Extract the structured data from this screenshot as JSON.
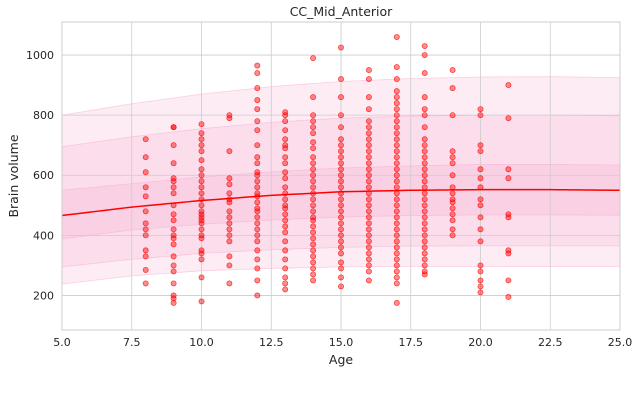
{
  "chart_data": {
    "type": "scatter",
    "title": "CC_Mid_Anterior",
    "xlabel": "Age",
    "ylabel": "Brain volume",
    "xlim": [
      5.0,
      25.0
    ],
    "ylim": [
      85,
      1110
    ],
    "xticks": [
      5.0,
      7.5,
      10.0,
      12.5,
      15.0,
      17.5,
      20.0,
      22.5,
      25.0
    ],
    "xtick_labels": [
      "5.0",
      "7.5",
      "10.0",
      "12.5",
      "15.0",
      "17.5",
      "20.0",
      "22.5",
      "25.0"
    ],
    "yticks": [
      200,
      400,
      600,
      800,
      1000
    ],
    "ytick_labels": [
      "200",
      "400",
      "600",
      "800",
      "1000"
    ],
    "grid": true,
    "colors": {
      "points": "#ff0000",
      "median_line": "#ff0000",
      "band": "#f7a8cf",
      "grid": "#cccccc",
      "frame": "#cccccc"
    },
    "median_curve": {
      "x": [
        5,
        7.5,
        10,
        12.5,
        15,
        17.5,
        20,
        22.5,
        25
      ],
      "y": [
        466,
        494,
        516,
        533,
        545,
        550,
        552,
        552,
        550
      ]
    },
    "bands": [
      {
        "lower": [
          238,
          265,
          282,
          290,
          295,
          297,
          297,
          296,
          296
        ],
        "upper": [
          800,
          838,
          870,
          895,
          912,
          922,
          927,
          928,
          925
        ]
      },
      {
        "lower": [
          295,
          320,
          340,
          352,
          360,
          364,
          365,
          365,
          365
        ],
        "upper": [
          695,
          728,
          755,
          776,
          790,
          797,
          800,
          800,
          798
        ]
      },
      {
        "lower": [
          388,
          418,
          437,
          451,
          461,
          466,
          468,
          468,
          467
        ],
        "upper": [
          550,
          572,
          594,
          611,
          624,
          631,
          636,
          636,
          634
        ]
      }
    ],
    "points": [
      [
        8,
        720
      ],
      [
        8,
        660
      ],
      [
        8,
        610
      ],
      [
        8,
        560
      ],
      [
        8,
        530
      ],
      [
        8,
        480
      ],
      [
        8,
        440
      ],
      [
        8,
        420
      ],
      [
        8,
        400
      ],
      [
        8,
        350
      ],
      [
        8,
        330
      ],
      [
        8,
        285
      ],
      [
        8,
        240
      ],
      [
        9,
        760
      ],
      [
        9,
        760
      ],
      [
        9,
        700
      ],
      [
        9,
        640
      ],
      [
        9,
        590
      ],
      [
        9,
        580
      ],
      [
        9,
        560
      ],
      [
        9,
        540
      ],
      [
        9,
        500
      ],
      [
        9,
        470
      ],
      [
        9,
        450
      ],
      [
        9,
        420
      ],
      [
        9,
        400
      ],
      [
        9,
        390
      ],
      [
        9,
        370
      ],
      [
        9,
        330
      ],
      [
        9,
        300
      ],
      [
        9,
        280
      ],
      [
        9,
        240
      ],
      [
        9,
        200
      ],
      [
        9,
        190
      ],
      [
        9,
        175
      ],
      [
        10,
        770
      ],
      [
        10,
        740
      ],
      [
        10,
        720
      ],
      [
        10,
        700
      ],
      [
        10,
        680
      ],
      [
        10,
        650
      ],
      [
        10,
        620
      ],
      [
        10,
        600
      ],
      [
        10,
        580
      ],
      [
        10,
        560
      ],
      [
        10,
        540
      ],
      [
        10,
        520
      ],
      [
        10,
        500
      ],
      [
        10,
        480
      ],
      [
        10,
        470
      ],
      [
        10,
        460
      ],
      [
        10,
        450
      ],
      [
        10,
        440
      ],
      [
        10,
        420
      ],
      [
        10,
        400
      ],
      [
        10,
        390
      ],
      [
        10,
        350
      ],
      [
        10,
        340
      ],
      [
        10,
        320
      ],
      [
        10,
        260
      ],
      [
        10,
        180
      ],
      [
        11,
        800
      ],
      [
        11,
        790
      ],
      [
        11,
        680
      ],
      [
        11,
        590
      ],
      [
        11,
        570
      ],
      [
        11,
        540
      ],
      [
        11,
        520
      ],
      [
        11,
        510
      ],
      [
        11,
        480
      ],
      [
        11,
        460
      ],
      [
        11,
        440
      ],
      [
        11,
        420
      ],
      [
        11,
        400
      ],
      [
        11,
        380
      ],
      [
        11,
        330
      ],
      [
        11,
        300
      ],
      [
        11,
        240
      ],
      [
        12,
        965
      ],
      [
        12,
        940
      ],
      [
        12,
        890
      ],
      [
        12,
        850
      ],
      [
        12,
        820
      ],
      [
        12,
        780
      ],
      [
        12,
        750
      ],
      [
        12,
        700
      ],
      [
        12,
        660
      ],
      [
        12,
        640
      ],
      [
        12,
        610
      ],
      [
        12,
        600
      ],
      [
        12,
        580
      ],
      [
        12,
        560
      ],
      [
        12,
        540
      ],
      [
        12,
        530
      ],
      [
        12,
        510
      ],
      [
        12,
        490
      ],
      [
        12,
        480
      ],
      [
        12,
        460
      ],
      [
        12,
        440
      ],
      [
        12,
        420
      ],
      [
        12,
        400
      ],
      [
        12,
        380
      ],
      [
        12,
        350
      ],
      [
        12,
        320
      ],
      [
        12,
        290
      ],
      [
        12,
        250
      ],
      [
        12,
        200
      ],
      [
        13,
        810
      ],
      [
        13,
        800
      ],
      [
        13,
        780
      ],
      [
        13,
        750
      ],
      [
        13,
        720
      ],
      [
        13,
        700
      ],
      [
        13,
        690
      ],
      [
        13,
        660
      ],
      [
        13,
        640
      ],
      [
        13,
        610
      ],
      [
        13,
        590
      ],
      [
        13,
        560
      ],
      [
        13,
        540
      ],
      [
        13,
        520
      ],
      [
        13,
        500
      ],
      [
        13,
        490
      ],
      [
        13,
        470
      ],
      [
        13,
        450
      ],
      [
        13,
        430
      ],
      [
        13,
        410
      ],
      [
        13,
        380
      ],
      [
        13,
        350
      ],
      [
        13,
        320
      ],
      [
        13,
        290
      ],
      [
        13,
        260
      ],
      [
        13,
        240
      ],
      [
        13,
        220
      ],
      [
        14,
        990
      ],
      [
        14,
        860
      ],
      [
        14,
        800
      ],
      [
        14,
        780
      ],
      [
        14,
        760
      ],
      [
        14,
        740
      ],
      [
        14,
        710
      ],
      [
        14,
        690
      ],
      [
        14,
        660
      ],
      [
        14,
        640
      ],
      [
        14,
        620
      ],
      [
        14,
        600
      ],
      [
        14,
        580
      ],
      [
        14,
        560
      ],
      [
        14,
        540
      ],
      [
        14,
        520
      ],
      [
        14,
        500
      ],
      [
        14,
        480
      ],
      [
        14,
        460
      ],
      [
        14,
        450
      ],
      [
        14,
        430
      ],
      [
        14,
        410
      ],
      [
        14,
        390
      ],
      [
        14,
        370
      ],
      [
        14,
        350
      ],
      [
        14,
        330
      ],
      [
        14,
        310
      ],
      [
        14,
        290
      ],
      [
        14,
        270
      ],
      [
        14,
        250
      ],
      [
        15,
        1025
      ],
      [
        15,
        920
      ],
      [
        15,
        860
      ],
      [
        15,
        800
      ],
      [
        15,
        760
      ],
      [
        15,
        720
      ],
      [
        15,
        700
      ],
      [
        15,
        680
      ],
      [
        15,
        660
      ],
      [
        15,
        640
      ],
      [
        15,
        620
      ],
      [
        15,
        600
      ],
      [
        15,
        580
      ],
      [
        15,
        560
      ],
      [
        15,
        540
      ],
      [
        15,
        520
      ],
      [
        15,
        500
      ],
      [
        15,
        480
      ],
      [
        15,
        460
      ],
      [
        15,
        440
      ],
      [
        15,
        420
      ],
      [
        15,
        400
      ],
      [
        15,
        380
      ],
      [
        15,
        360
      ],
      [
        15,
        340
      ],
      [
        15,
        310
      ],
      [
        15,
        290
      ],
      [
        15,
        260
      ],
      [
        15,
        230
      ],
      [
        16,
        950
      ],
      [
        16,
        920
      ],
      [
        16,
        860
      ],
      [
        16,
        820
      ],
      [
        16,
        780
      ],
      [
        16,
        760
      ],
      [
        16,
        740
      ],
      [
        16,
        720
      ],
      [
        16,
        700
      ],
      [
        16,
        680
      ],
      [
        16,
        660
      ],
      [
        16,
        640
      ],
      [
        16,
        620
      ],
      [
        16,
        600
      ],
      [
        16,
        580
      ],
      [
        16,
        560
      ],
      [
        16,
        540
      ],
      [
        16,
        520
      ],
      [
        16,
        500
      ],
      [
        16,
        480
      ],
      [
        16,
        460
      ],
      [
        16,
        440
      ],
      [
        16,
        420
      ],
      [
        16,
        400
      ],
      [
        16,
        380
      ],
      [
        16,
        360
      ],
      [
        16,
        340
      ],
      [
        16,
        320
      ],
      [
        16,
        300
      ],
      [
        16,
        280
      ],
      [
        16,
        250
      ],
      [
        17,
        1060
      ],
      [
        17,
        960
      ],
      [
        17,
        920
      ],
      [
        17,
        880
      ],
      [
        17,
        860
      ],
      [
        17,
        840
      ],
      [
        17,
        820
      ],
      [
        17,
        800
      ],
      [
        17,
        780
      ],
      [
        17,
        760
      ],
      [
        17,
        740
      ],
      [
        17,
        720
      ],
      [
        17,
        700
      ],
      [
        17,
        680
      ],
      [
        17,
        660
      ],
      [
        17,
        640
      ],
      [
        17,
        620
      ],
      [
        17,
        600
      ],
      [
        17,
        580
      ],
      [
        17,
        560
      ],
      [
        17,
        540
      ],
      [
        17,
        520
      ],
      [
        17,
        500
      ],
      [
        17,
        480
      ],
      [
        17,
        460
      ],
      [
        17,
        440
      ],
      [
        17,
        420
      ],
      [
        17,
        400
      ],
      [
        17,
        380
      ],
      [
        17,
        360
      ],
      [
        17,
        340
      ],
      [
        17,
        320
      ],
      [
        17,
        300
      ],
      [
        17,
        280
      ],
      [
        17,
        260
      ],
      [
        17,
        240
      ],
      [
        17,
        175
      ],
      [
        18,
        1030
      ],
      [
        18,
        1000
      ],
      [
        18,
        940
      ],
      [
        18,
        860
      ],
      [
        18,
        820
      ],
      [
        18,
        800
      ],
      [
        18,
        760
      ],
      [
        18,
        720
      ],
      [
        18,
        700
      ],
      [
        18,
        680
      ],
      [
        18,
        660
      ],
      [
        18,
        640
      ],
      [
        18,
        620
      ],
      [
        18,
        600
      ],
      [
        18,
        580
      ],
      [
        18,
        560
      ],
      [
        18,
        540
      ],
      [
        18,
        520
      ],
      [
        18,
        500
      ],
      [
        18,
        480
      ],
      [
        18,
        460
      ],
      [
        18,
        440
      ],
      [
        18,
        420
      ],
      [
        18,
        400
      ],
      [
        18,
        380
      ],
      [
        18,
        360
      ],
      [
        18,
        340
      ],
      [
        18,
        320
      ],
      [
        18,
        300
      ],
      [
        18,
        280
      ],
      [
        18,
        270
      ],
      [
        19,
        950
      ],
      [
        19,
        890
      ],
      [
        19,
        800
      ],
      [
        19,
        680
      ],
      [
        19,
        660
      ],
      [
        19,
        640
      ],
      [
        19,
        600
      ],
      [
        19,
        560
      ],
      [
        19,
        540
      ],
      [
        19,
        520
      ],
      [
        19,
        510
      ],
      [
        19,
        490
      ],
      [
        19,
        470
      ],
      [
        19,
        450
      ],
      [
        19,
        420
      ],
      [
        19,
        400
      ],
      [
        20,
        820
      ],
      [
        20,
        800
      ],
      [
        20,
        700
      ],
      [
        20,
        680
      ],
      [
        20,
        620
      ],
      [
        20,
        590
      ],
      [
        20,
        560
      ],
      [
        20,
        520
      ],
      [
        20,
        500
      ],
      [
        20,
        460
      ],
      [
        20,
        420
      ],
      [
        20,
        380
      ],
      [
        20,
        300
      ],
      [
        20,
        280
      ],
      [
        20,
        250
      ],
      [
        20,
        230
      ],
      [
        20,
        210
      ],
      [
        21,
        900
      ],
      [
        21,
        790
      ],
      [
        21,
        620
      ],
      [
        21,
        590
      ],
      [
        21,
        470
      ],
      [
        21,
        460
      ],
      [
        21,
        350
      ],
      [
        21,
        340
      ],
      [
        21,
        250
      ],
      [
        21,
        195
      ]
    ]
  }
}
